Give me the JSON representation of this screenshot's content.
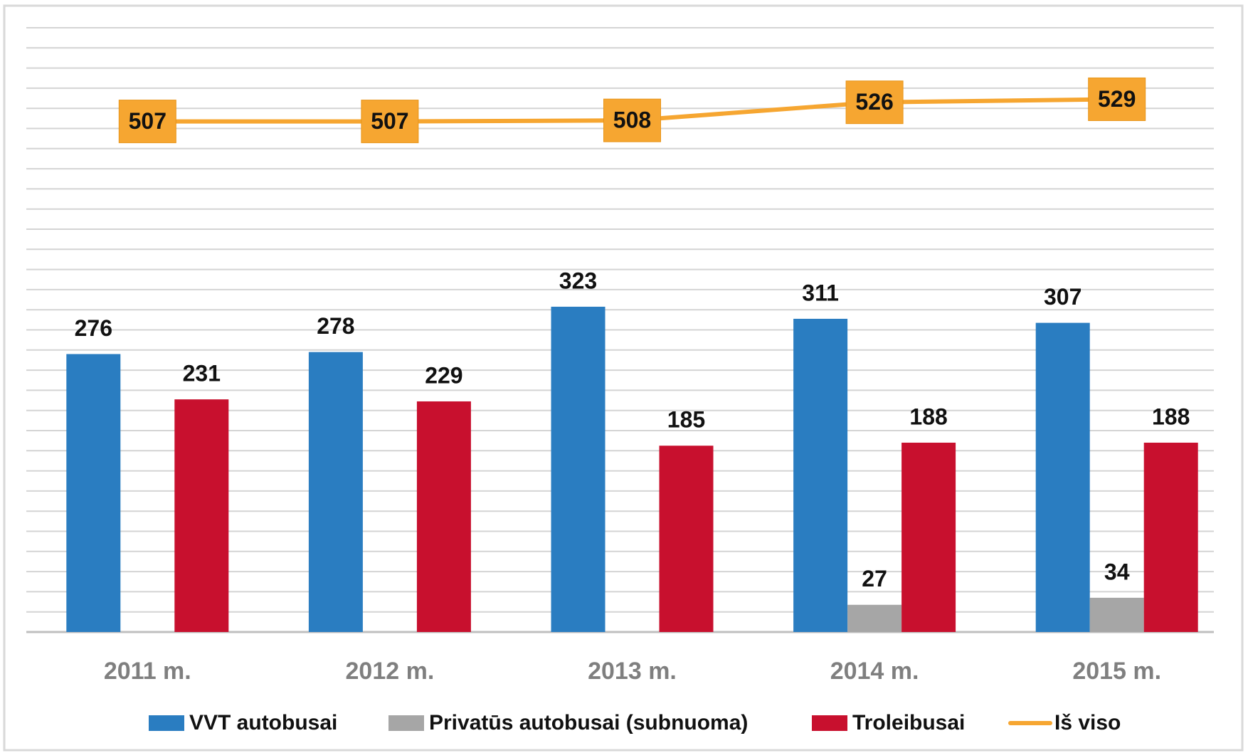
{
  "chart_data": {
    "type": "bar",
    "categories": [
      "2011 m.",
      "2012 m.",
      "2013 m.",
      "2014 m.",
      "2015 m."
    ],
    "series": [
      {
        "name": "VVT autobusai",
        "color": "#2a7dc1",
        "values": [
          276,
          278,
          323,
          311,
          307
        ]
      },
      {
        "name": "Privatūs autobusai (subnuoma)",
        "color": "#a6a6a6",
        "values": [
          null,
          null,
          null,
          27,
          34
        ]
      },
      {
        "name": "Troleibusai",
        "color": "#c8102e",
        "values": [
          231,
          229,
          185,
          188,
          188
        ]
      },
      {
        "name": "Iš viso",
        "color": "#f6a631",
        "type": "line",
        "values": [
          507,
          507,
          508,
          526,
          529
        ]
      }
    ],
    "ylim": [
      0,
      600
    ],
    "yticks": [
      0,
      20,
      40,
      60,
      80,
      100,
      120,
      140,
      160,
      180,
      200,
      220,
      240,
      260,
      280,
      300,
      320,
      340,
      360,
      380,
      400,
      420,
      440,
      460,
      480,
      500,
      520,
      540,
      560,
      580,
      600
    ],
    "grid": true
  }
}
